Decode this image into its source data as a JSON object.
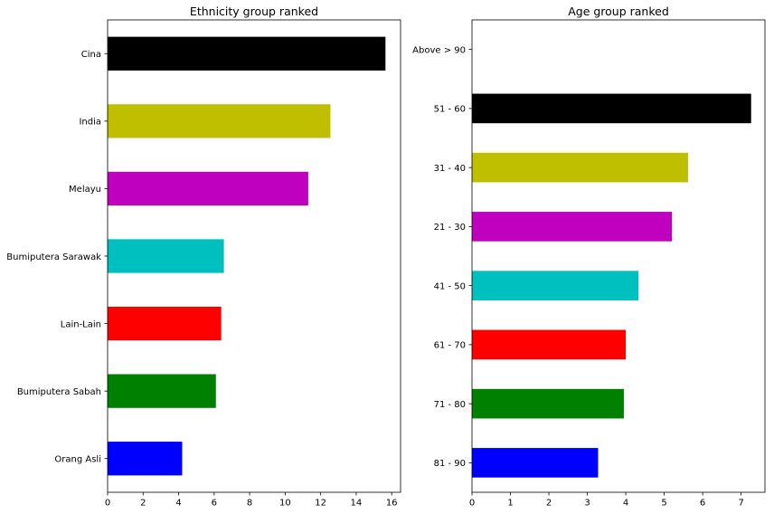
{
  "chart_data": [
    {
      "type": "bar",
      "orientation": "horizontal",
      "title": "Ethnicity group ranked",
      "xlabel": "",
      "ylabel": "",
      "categories": [
        "Orang Asli",
        "Bumiputera Sabah",
        "Lain-Lain",
        "Bumiputera Sarawak",
        "Melayu",
        "India",
        "Cina"
      ],
      "values": [
        4.2,
        6.1,
        6.4,
        6.55,
        11.3,
        12.55,
        15.65
      ],
      "colors": [
        "#0000ff",
        "#008000",
        "#ff0000",
        "#00bfbf",
        "#bf00bf",
        "#bfbf00",
        "#000000"
      ],
      "xlim": [
        0,
        16.5
      ],
      "xticks": [
        0,
        2,
        4,
        6,
        8,
        10,
        12,
        14,
        16
      ],
      "grid": false
    },
    {
      "type": "bar",
      "orientation": "horizontal",
      "title": "Age group ranked",
      "xlabel": "",
      "ylabel": "",
      "categories": [
        "81 - 90",
        "71 - 80",
        "61 - 70",
        "41 - 50",
        "21 - 30",
        "31 - 40",
        "51 - 60",
        "Above > 90"
      ],
      "values": [
        3.28,
        3.95,
        4.0,
        4.33,
        5.2,
        5.62,
        7.26,
        0
      ],
      "colors": [
        "#0000ff",
        "#008000",
        "#ff0000",
        "#00bfbf",
        "#bf00bf",
        "#bfbf00",
        "#000000",
        "#0000ff"
      ],
      "xlim": [
        0,
        7.62
      ],
      "xticks": [
        0,
        1,
        2,
        3,
        4,
        5,
        6,
        7
      ],
      "grid": false
    }
  ]
}
